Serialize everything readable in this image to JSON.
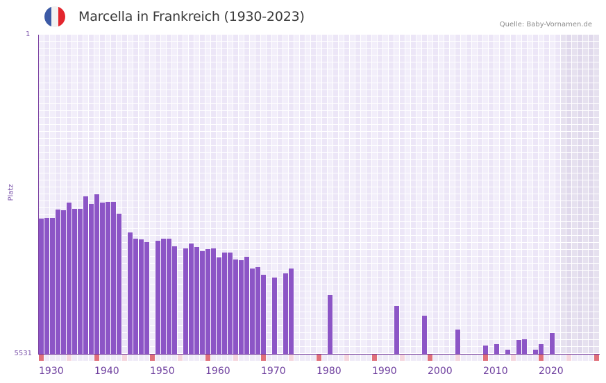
{
  "header": {
    "title": "Marcella in Frankreich (1930-2023)",
    "source": "Quelle: Baby-Vornamen.de",
    "flag_icon": "france-flag-icon",
    "flag_colors": [
      "#3c5aa6",
      "#f2f2f2",
      "#e3262e"
    ]
  },
  "axis": {
    "y_top_label": "1",
    "y_bottom_label": "5531",
    "y_title": "Platz"
  },
  "colors": {
    "bar": "#8c55c6",
    "grid_a": "#f2eefa",
    "grid_b": "#ece6f7",
    "future_a": "#e6e1ef",
    "future_b": "#e0d9ec",
    "marker_decade": "#e0707a",
    "marker_half": "#f5d6de",
    "marker_year": "#efebf7"
  },
  "chart_data": {
    "type": "bar",
    "title": "Marcella in Frankreich (1930-2023)",
    "xlabel": "",
    "ylabel": "Platz",
    "y_inverted": true,
    "ylim": [
      5531,
      1
    ],
    "xlim": [
      1930,
      2030
    ],
    "x_tick_labels": [
      "1930",
      "1940",
      "1950",
      "1960",
      "1970",
      "1980",
      "1990",
      "2000",
      "2010",
      "2020"
    ],
    "grid": true,
    "legend": null,
    "shaded_future_from": 2024,
    "categories": [
      1930,
      1931,
      1932,
      1933,
      1934,
      1935,
      1936,
      1937,
      1938,
      1939,
      1940,
      1941,
      1942,
      1943,
      1944,
      1945,
      1946,
      1947,
      1948,
      1949,
      1950,
      1951,
      1952,
      1953,
      1954,
      1955,
      1956,
      1957,
      1958,
      1959,
      1960,
      1961,
      1962,
      1963,
      1964,
      1965,
      1966,
      1967,
      1968,
      1969,
      1970,
      1971,
      1972,
      1973,
      1974,
      1975,
      1976,
      1977,
      1978,
      1979,
      1980,
      1981,
      1982,
      1983,
      1984,
      1985,
      1986,
      1987,
      1988,
      1989,
      1990,
      1991,
      1992,
      1993,
      1994,
      1995,
      1996,
      1997,
      1998,
      1999,
      2000,
      2001,
      2002,
      2003,
      2004,
      2005,
      2006,
      2007,
      2008,
      2009,
      2010,
      2011,
      2012,
      2013,
      2014,
      2015,
      2016,
      2017,
      2018,
      2019,
      2020,
      2021,
      2022,
      2023
    ],
    "series": [
      {
        "name": "Platz",
        "values": [
          3186,
          3174,
          3174,
          3030,
          3042,
          2910,
          3018,
          3018,
          2802,
          2934,
          2766,
          2910,
          2898,
          2898,
          3102,
          null,
          3426,
          3534,
          3546,
          3594,
          null,
          3570,
          3534,
          3534,
          3666,
          null,
          3702,
          3618,
          3678,
          3750,
          3714,
          3702,
          3858,
          3774,
          3774,
          3894,
          3906,
          3846,
          4050,
          4026,
          4158,
          null,
          4206,
          null,
          4134,
          4050,
          null,
          null,
          null,
          null,
          null,
          null,
          4510,
          null,
          null,
          null,
          null,
          null,
          null,
          null,
          null,
          null,
          null,
          null,
          4702,
          null,
          null,
          null,
          null,
          4870,
          null,
          null,
          null,
          null,
          null,
          5110,
          null,
          null,
          null,
          null,
          5386,
          null,
          5362,
          null,
          5458,
          null,
          5290,
          5278,
          null,
          5458,
          5362,
          null,
          5170,
          null
        ]
      }
    ]
  }
}
